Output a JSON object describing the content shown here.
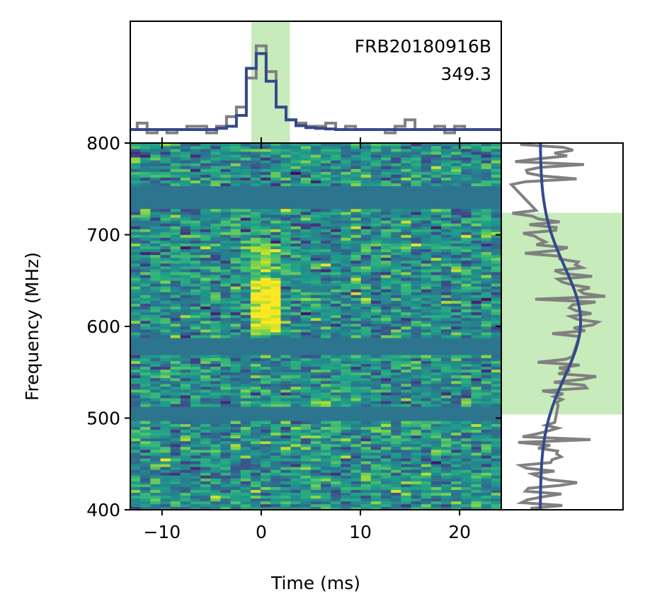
{
  "chart_data": {
    "type": "heatmap",
    "annotation": {
      "name": "FRB20180916B",
      "dm": "349.3"
    },
    "xlabel": "Time (ms)",
    "ylabel": "Frequency (MHz)",
    "xlim": [
      -13.2,
      24.2
    ],
    "ylim": [
      400,
      800
    ],
    "xticks": [
      "−10",
      "0",
      "10",
      "20"
    ],
    "xtick_values": [
      -10,
      0,
      10,
      20
    ],
    "yticks": [
      "400",
      "500",
      "600",
      "700",
      "800"
    ],
    "ytick_values": [
      400,
      500,
      600,
      700,
      800
    ],
    "time_highlight_ms": [
      -1.0,
      2.9
    ],
    "freq_highlight_mhz": [
      504,
      724
    ],
    "colormap": "viridis",
    "masked_bands_mhz": [
      [
        728,
        752
      ],
      [
        568,
        588
      ],
      [
        498,
        512
      ]
    ],
    "burst": {
      "time_ms": [
        -1.5,
        1.5
      ],
      "freq_mhz": [
        590,
        690
      ],
      "peak_mhz": [
        600,
        650
      ]
    },
    "time_series": {
      "time_ms": [
        -13,
        -12,
        -11,
        -10,
        -9,
        -8,
        -7,
        -6,
        -5,
        -4,
        -3,
        -2,
        -1,
        0,
        1,
        2,
        3,
        4,
        5,
        6,
        7,
        8,
        9,
        10,
        11,
        12,
        13,
        14,
        15,
        16,
        17,
        18,
        19,
        20,
        21,
        22,
        23,
        24
      ],
      "data": [
        0.0,
        0.1,
        -0.05,
        0.0,
        -0.05,
        0.0,
        0.05,
        0.05,
        -0.05,
        0.05,
        0.2,
        0.35,
        0.8,
        1.3,
        0.9,
        0.35,
        0.15,
        0.1,
        0.05,
        0.05,
        0.1,
        0.0,
        0.05,
        0.0,
        0.0,
        0.0,
        -0.05,
        0.05,
        0.15,
        0.0,
        0.0,
        0.05,
        -0.05,
        0.05,
        0.0,
        0.0,
        0.0,
        0.0
      ],
      "model": [
        0.0,
        0.0,
        0.0,
        0.0,
        0.0,
        0.0,
        0.0,
        0.0,
        0.0,
        0.02,
        0.05,
        0.22,
        0.95,
        1.18,
        0.75,
        0.35,
        0.15,
        0.06,
        0.03,
        0.02,
        0.01,
        0.0,
        0.0,
        0.0,
        0.0,
        0.0,
        0.0,
        0.0,
        0.0,
        0.0,
        0.0,
        0.0,
        0.0,
        0.0,
        0.0,
        0.0,
        0.0,
        0.0
      ]
    },
    "spectrum": {
      "gaussian": {
        "center_mhz": 605,
        "width_mhz": 60,
        "amplitude": 1.0
      }
    }
  },
  "colors": {
    "highlight": "#c8ebbb",
    "model_line": "#35498a",
    "data_line": "#808080",
    "masked_fill": "#2d758e"
  }
}
